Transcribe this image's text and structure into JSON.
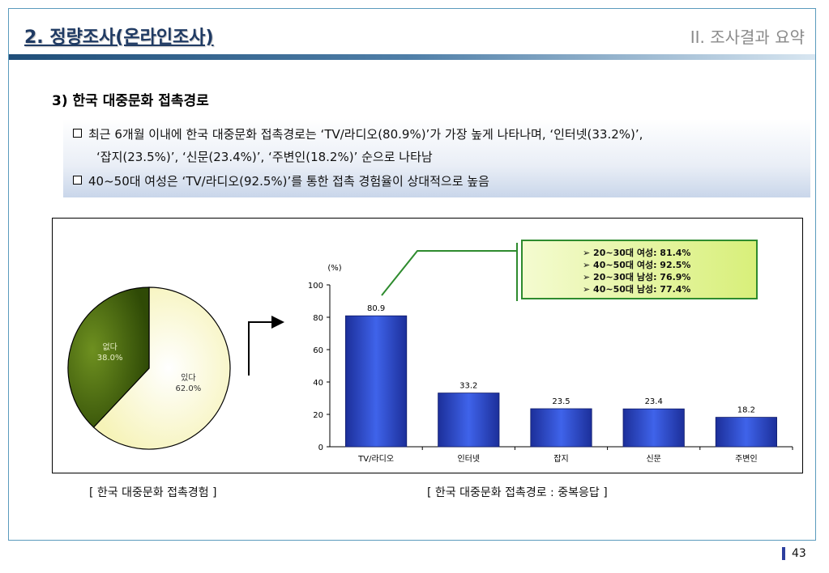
{
  "header": {
    "title": "2. 정량조사(온라인조사)",
    "section": "II. 조사결과 요약"
  },
  "subheading": "3) 한국 대중문화 접촉경로",
  "summary": {
    "lines": [
      "최근 6개월 이내에 한국 대중문화 접촉경로는 ‘TV/라디오(80.9%)’가 가장 높게 나타나며, ‘인터넷(33.2%)’,",
      "‘잡지(23.5%)’, ‘신문(23.4%)’, ‘주변인(18.2%)’ 순으로 나타남",
      "40~50대 여성은 ‘TV/라디오(92.5%)’를 통한 접촉 경험율이 상대적으로 높음"
    ]
  },
  "note": {
    "lines": [
      "➢ 20~30대 여성: 81.4%",
      "➢ 40~50대 여성: 92.5%",
      "➢ 20~30대 남성: 76.9%",
      "➢ 40~50대 남성: 77.4%"
    ]
  },
  "captions": {
    "pie": "[ 한국 대중문화 접촉경험 ]",
    "bar": "[ 한국 대중문화 접촉경로 : 중복응답 ]"
  },
  "page_number": "43",
  "chart_data": [
    {
      "type": "pie",
      "slices": [
        {
          "label": "있다",
          "value": 62.0,
          "value_label": "62.0%",
          "color": "#ffffd9"
        },
        {
          "label": "없다",
          "value": 38.0,
          "value_label": "38.0%",
          "color": "#4f6b0f"
        }
      ]
    },
    {
      "type": "bar",
      "unit_label": "(%)",
      "categories": [
        "TV/라디오",
        "인터넷",
        "잡지",
        "신문",
        "주변인"
      ],
      "values": [
        80.9,
        33.2,
        23.5,
        23.4,
        18.2
      ],
      "value_labels": [
        "80.9",
        "33.2",
        "23.5",
        "23.4",
        "18.2"
      ],
      "ylim": [
        0,
        100
      ],
      "yticks": [
        "0",
        "20",
        "40",
        "60",
        "80",
        "100"
      ],
      "grid": false,
      "bar_color": "#2f50d6"
    }
  ]
}
